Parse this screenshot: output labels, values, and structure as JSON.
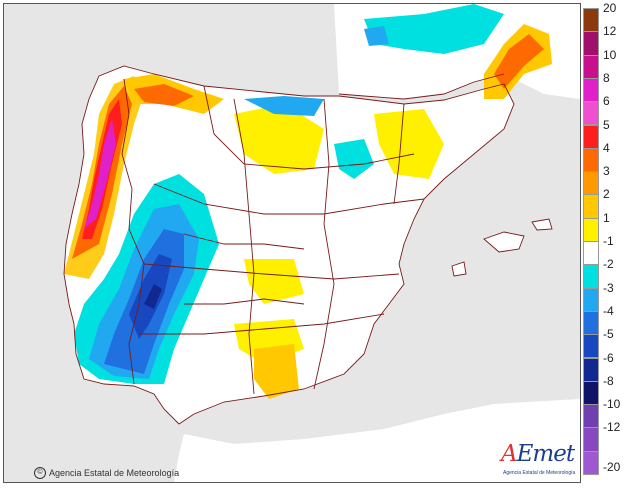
{
  "map": {
    "credit": "Agencia Estatal de Meteorología",
    "credit_symbol": "©",
    "logo": {
      "brand_a": "A",
      "brand_rest": "Emet",
      "subtitle": "Agencia Estatal de Meteorología"
    },
    "colors": {
      "sea": "#e6e6e6",
      "land": "#ffffff",
      "border": "#7a1a1a"
    }
  },
  "legend": {
    "items": [
      {
        "label": "20",
        "color": "#8b3a0e"
      },
      {
        "label": "12",
        "color": "#a0106a"
      },
      {
        "label": "10",
        "color": "#c8108c"
      },
      {
        "label": "8",
        "color": "#e020c8"
      },
      {
        "label": "6",
        "color": "#f050d0"
      },
      {
        "label": "5",
        "color": "#ff1e1e"
      },
      {
        "label": "4",
        "color": "#ff6a00"
      },
      {
        "label": "3",
        "color": "#ff9a00"
      },
      {
        "label": "2",
        "color": "#ffc800"
      },
      {
        "label": "1",
        "color": "#fff000"
      },
      {
        "label": "-1",
        "color": "#ffffff"
      },
      {
        "label": "-2",
        "color": "#00e0e0"
      },
      {
        "label": "-3",
        "color": "#20a8f0"
      },
      {
        "label": "-4",
        "color": "#2070e0"
      },
      {
        "label": "-5",
        "color": "#1848c0"
      },
      {
        "label": "-6",
        "color": "#102890"
      },
      {
        "label": "-8",
        "color": "#101468"
      },
      {
        "label": "-10",
        "color": "#7040b0"
      },
      {
        "label": "-12",
        "color": "#8848c0"
      },
      {
        "label": "-20",
        "color": "#a058d0"
      }
    ]
  }
}
